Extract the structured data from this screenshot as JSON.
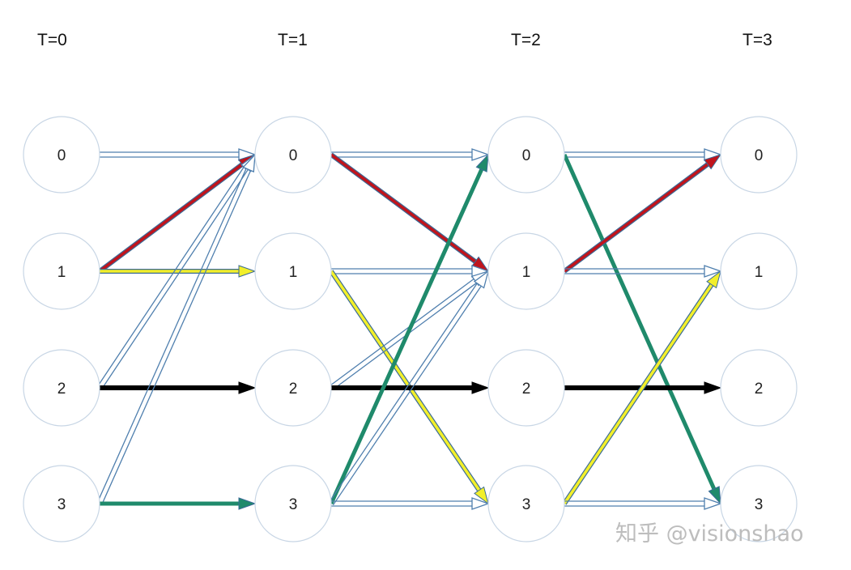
{
  "time_labels": [
    "T=0",
    "T=1",
    "T=2",
    "T=3"
  ],
  "node_labels": [
    "0",
    "1",
    "2",
    "3"
  ],
  "watermark": "知乎 @visionshao",
  "colors": {
    "outline_edge": "#4f7fae",
    "red": "#c0141c",
    "yellow": "#f2ef2a",
    "black": "#000000",
    "green": "#1f8a6b",
    "node_stroke": "#c8d6e5"
  },
  "edges": [
    {
      "step": 0,
      "from": "0",
      "to": "0",
      "style": "outline"
    },
    {
      "step": 0,
      "from": "1",
      "to": "0",
      "style": "red"
    },
    {
      "step": 0,
      "from": "1",
      "to": "1",
      "style": "yellow"
    },
    {
      "step": 0,
      "from": "2",
      "to": "0",
      "style": "outline"
    },
    {
      "step": 0,
      "from": "2",
      "to": "2",
      "style": "black"
    },
    {
      "step": 0,
      "from": "3",
      "to": "0",
      "style": "outline"
    },
    {
      "step": 0,
      "from": "3",
      "to": "3",
      "style": "green"
    },
    {
      "step": 1,
      "from": "0",
      "to": "0",
      "style": "outline"
    },
    {
      "step": 1,
      "from": "0",
      "to": "1",
      "style": "red"
    },
    {
      "step": 1,
      "from": "1",
      "to": "1",
      "style": "outline"
    },
    {
      "step": 1,
      "from": "1",
      "to": "3",
      "style": "yellow"
    },
    {
      "step": 1,
      "from": "2",
      "to": "1",
      "style": "outline"
    },
    {
      "step": 1,
      "from": "2",
      "to": "2",
      "style": "black"
    },
    {
      "step": 1,
      "from": "3",
      "to": "0",
      "style": "green"
    },
    {
      "step": 1,
      "from": "3",
      "to": "1",
      "style": "outline"
    },
    {
      "step": 1,
      "from": "3",
      "to": "3",
      "style": "outline"
    },
    {
      "step": 2,
      "from": "0",
      "to": "0",
      "style": "outline"
    },
    {
      "step": 2,
      "from": "0",
      "to": "3",
      "style": "green"
    },
    {
      "step": 2,
      "from": "1",
      "to": "0",
      "style": "red"
    },
    {
      "step": 2,
      "from": "1",
      "to": "1",
      "style": "outline"
    },
    {
      "step": 2,
      "from": "2",
      "to": "2",
      "style": "black"
    },
    {
      "step": 2,
      "from": "3",
      "to": "1",
      "style": "yellow"
    },
    {
      "step": 2,
      "from": "3",
      "to": "3",
      "style": "outline"
    }
  ]
}
